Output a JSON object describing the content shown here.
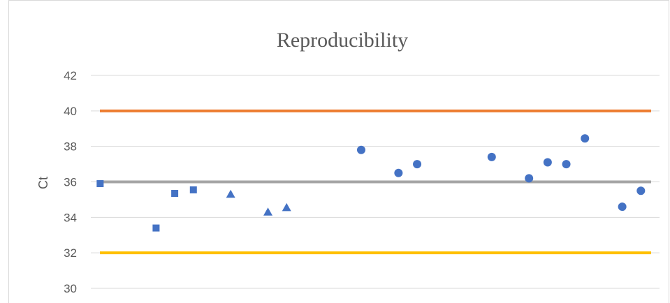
{
  "chart_data": {
    "type": "scatter",
    "title": "Reproducibility",
    "xlabel": "",
    "ylabel": "Ct",
    "ylim": [
      30,
      42
    ],
    "yticks": [
      30,
      32,
      34,
      36,
      38,
      40,
      42
    ],
    "xlim": [
      0.5,
      31
    ],
    "grid": true,
    "reference_lines": [
      {
        "value": 40,
        "color": "#ED7D31"
      },
      {
        "value": 36,
        "color": "#A5A5A5"
      },
      {
        "value": 32,
        "color": "#FFC000"
      }
    ],
    "marker_color": "#4472C4",
    "series": [
      {
        "marker": "square",
        "x": [
          1,
          4,
          5,
          6
        ],
        "y": [
          35.9,
          33.4,
          35.35,
          35.55
        ]
      },
      {
        "marker": "triangle",
        "x": [
          8,
          10,
          11
        ],
        "y": [
          35.3,
          34.3,
          34.55
        ]
      },
      {
        "marker": "circle",
        "x": [
          15,
          17,
          18,
          22,
          24,
          25,
          26,
          27,
          29,
          30
        ],
        "y": [
          37.8,
          36.5,
          37.0,
          37.4,
          36.2,
          37.1,
          37.0,
          38.45,
          34.6,
          35.5
        ]
      }
    ]
  }
}
